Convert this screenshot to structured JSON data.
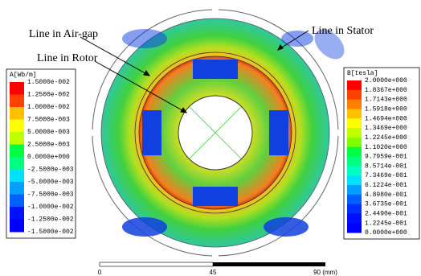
{
  "annotations": [
    "Line in Air-gap",
    "Line in Stator",
    "Line in Rotor"
  ],
  "left_legend": {
    "title": "A[Wb/m]",
    "labels": [
      "1.5000e-002",
      "1.2500e-002",
      "1.0000e-002",
      "7.5000e-003",
      "5.0000e-003",
      "2.5000e-003",
      "0.0000e+000",
      "-2.5000e-003",
      "-5.0000e-003",
      "-7.5000e-003",
      "-1.0000e-002",
      "-1.2500e-002",
      "-1.5000e-002"
    ]
  },
  "right_legend": {
    "title": "B[tesla]",
    "labels": [
      "2.0000e+000",
      "1.8367e+000",
      "1.7143e+000",
      "1.5918e+000",
      "1.4694e+000",
      "1.3469e+000",
      "1.2245e+000",
      "1.1020e+000",
      "9.7959e-001",
      "8.5714e-001",
      "7.3469e-001",
      "6.1224e-001",
      "4.8980e-001",
      "3.6735e-001",
      "2.4490e-001",
      "1.2245e-001",
      "0.0000e+000"
    ]
  },
  "scale_bar": {
    "labels": [
      "0",
      "45",
      "90 (mm)"
    ]
  }
}
